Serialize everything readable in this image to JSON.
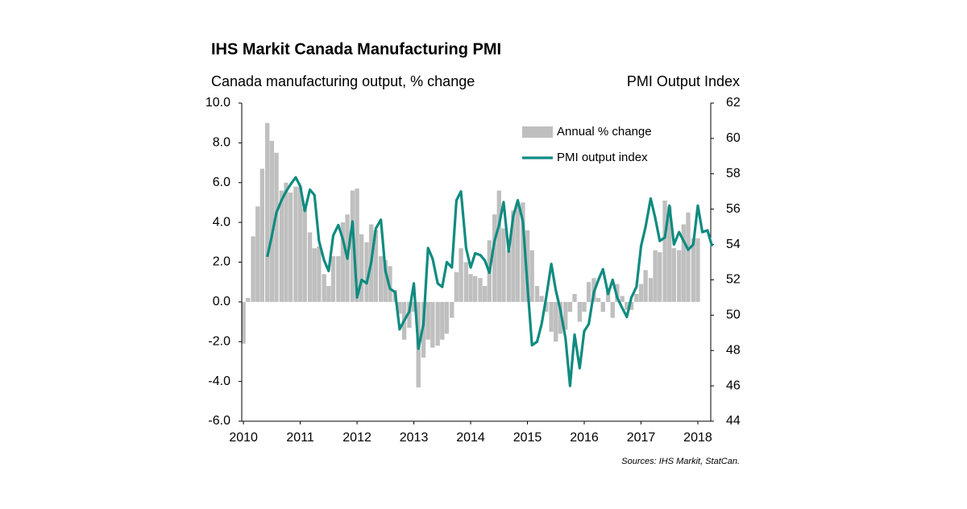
{
  "chart_data": {
    "type": "combo",
    "title": "IHS Markit Canada Manufacturing PMI",
    "y_label": "Canada manufacturing output, % change",
    "y2_label": "PMI Output Index",
    "source": "Sources: IHS Markit, StatCan.",
    "legend": "upper right",
    "xlim": [
      2009.97,
      2018.27
    ],
    "xticks": [
      2010,
      2011,
      2012,
      2013,
      2014,
      2015,
      2016,
      2017,
      2018
    ],
    "ylim": [
      -6,
      10
    ],
    "yticks": [
      {
        "value": -6,
        "label": "-6.0"
      },
      {
        "value": -4,
        "label": "-4.0"
      },
      {
        "value": -2,
        "label": "-2.0"
      },
      {
        "value": 0,
        "label": "0.0"
      },
      {
        "value": 2,
        "label": "2.0"
      },
      {
        "value": 4,
        "label": "4.0"
      },
      {
        "value": 6,
        "label": "6.0"
      },
      {
        "value": 8,
        "label": "8.0"
      },
      {
        "value": 10,
        "label": "10.0"
      }
    ],
    "y2lim": [
      44,
      62
    ],
    "y2ticks": [
      44,
      46,
      48,
      50,
      52,
      54,
      56,
      58,
      60,
      62
    ],
    "x": [
      2010,
      2010.08,
      2010.17,
      2010.25,
      2010.33,
      2010.42,
      2010.5,
      2010.58,
      2010.67,
      2010.75,
      2010.83,
      2010.92,
      2011,
      2011.08,
      2011.17,
      2011.25,
      2011.33,
      2011.42,
      2011.5,
      2011.58,
      2011.67,
      2011.75,
      2011.83,
      2011.92,
      2012,
      2012.08,
      2012.17,
      2012.25,
      2012.33,
      2012.42,
      2012.5,
      2012.58,
      2012.67,
      2012.75,
      2012.83,
      2012.92,
      2013,
      2013.08,
      2013.17,
      2013.25,
      2013.33,
      2013.42,
      2013.5,
      2013.58,
      2013.67,
      2013.75,
      2013.83,
      2013.92,
      2014,
      2014.08,
      2014.17,
      2014.25,
      2014.33,
      2014.42,
      2014.5,
      2014.58,
      2014.67,
      2014.75,
      2014.83,
      2014.92,
      2015,
      2015.08,
      2015.17,
      2015.25,
      2015.33,
      2015.42,
      2015.5,
      2015.58,
      2015.67,
      2015.75,
      2015.83,
      2015.92,
      2016,
      2016.08,
      2016.17,
      2016.25,
      2016.33,
      2016.42,
      2016.5,
      2016.58,
      2016.67,
      2016.75,
      2016.83,
      2016.92,
      2017,
      2017.08,
      2017.17,
      2017.25,
      2017.33,
      2017.42,
      2017.5,
      2017.58,
      2017.67,
      2017.75,
      2017.83,
      2017.92,
      2018,
      2018.08,
      2018.17,
      2018.25
    ],
    "series": [
      {
        "name": "Annual % change",
        "type": "bar",
        "color": "#bfbfbf",
        "values": [
          -2.1,
          0.2,
          3.3,
          4.8,
          6.7,
          9.0,
          8.1,
          7.5,
          5.6,
          6.0,
          5.5,
          5.8,
          5.8,
          4.7,
          3.5,
          2.7,
          2.8,
          1.4,
          0.8,
          2.3,
          2.3,
          4.0,
          4.4,
          5.6,
          5.7,
          3.4,
          3.0,
          3.9,
          3.6,
          2.3,
          2.1,
          1.8,
          0.6,
          -0.6,
          -1.9,
          -1.3,
          -0.5,
          -4.3,
          -2.8,
          -1.9,
          -2.3,
          -2.2,
          -1.9,
          -1.6,
          -0.8,
          1.5,
          2.7,
          2.0,
          1.4,
          1.3,
          1.2,
          0.8,
          3.1,
          4.4,
          5.6,
          3.7,
          2.6,
          4.6,
          5.0,
          5.0,
          3.6,
          2.6,
          0.8,
          0.3,
          -0.5,
          -1.5,
          -2.0,
          -1.6,
          -1.4,
          -0.5,
          0.4,
          -1.0,
          -0.5,
          1.0,
          1.2,
          0.2,
          -0.5,
          0.6,
          -0.8,
          0.9,
          0.3,
          -0.4,
          -0.4,
          0.4,
          0.9,
          1.6,
          1.2,
          2.6,
          2.5,
          5.1,
          4.8,
          2.7,
          2.6,
          3.9,
          4.5,
          3.2,
          3.2,
          null,
          null,
          null
        ]
      },
      {
        "name": "PMI output index",
        "type": "line",
        "axis": "y2",
        "color": "#0f8b80",
        "values": [
          null,
          null,
          null,
          null,
          null,
          53.3,
          54.5,
          55.8,
          56.5,
          57.0,
          57.4,
          57.8,
          57.3,
          55.9,
          57.1,
          56.8,
          54.2,
          53.1,
          52.5,
          54.5,
          55.1,
          54.3,
          53.2,
          55.3,
          51.0,
          52.0,
          51.8,
          53.0,
          54.9,
          55.4,
          52.5,
          51.5,
          51.3,
          49.2,
          49.7,
          50.2,
          51.8,
          48.1,
          49.5,
          53.8,
          53.2,
          51.8,
          51.6,
          53.0,
          52.7,
          56.5,
          57.0,
          53.8,
          52.7,
          53.5,
          53.4,
          53.1,
          52.4,
          54.2,
          55.1,
          56.4,
          53.6,
          55.6,
          56.5,
          55.3,
          51.7,
          48.3,
          48.5,
          49.5,
          51.0,
          52.9,
          51.4,
          50.3,
          48.7,
          46.0,
          48.9,
          47.0,
          49.1,
          49.5,
          51.3,
          52.0,
          52.6,
          51.2,
          52.0,
          51.0,
          50.4,
          49.9,
          51.0,
          51.6,
          53.9,
          55.0,
          56.6,
          55.5,
          54.2,
          54.4,
          56.2,
          54.0,
          54.7,
          54.2,
          53.7,
          54.0,
          56.2,
          54.7,
          54.8,
          53.9
        ]
      }
    ]
  }
}
